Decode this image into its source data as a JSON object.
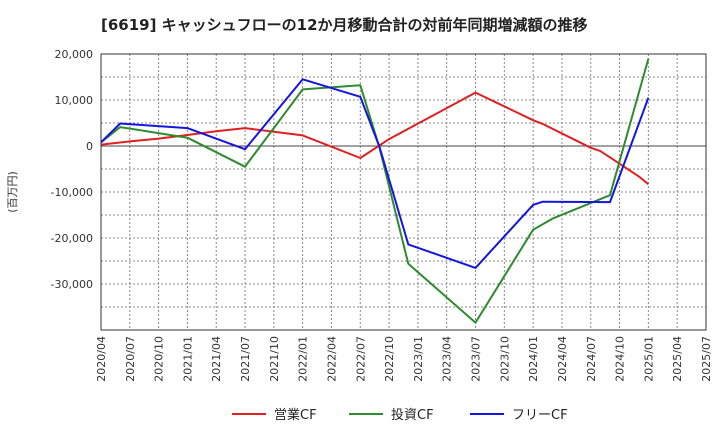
{
  "chart_data": {
    "type": "line",
    "title": "[6619]  キャッシュフローの12か月移動合計の対前年同期増減額の推移",
    "ylabel": "(百万円)",
    "xlabel": "",
    "ylim": [
      -40000,
      20000
    ],
    "yticks": [
      20000,
      10000,
      0,
      -10000,
      -20000,
      -30000
    ],
    "ytick_labels": [
      "20,000",
      "10,000",
      "0",
      "-10,000",
      "-20,000",
      "-30,000"
    ],
    "xticks": [
      "2020/04",
      "2020/07",
      "2020/10",
      "2021/01",
      "2021/04",
      "2021/07",
      "2021/10",
      "2022/01",
      "2022/04",
      "2022/07",
      "2022/10",
      "2023/01",
      "2023/04",
      "2023/07",
      "2023/10",
      "2024/01",
      "2024/04",
      "2024/07",
      "2024/10",
      "2025/01",
      "2025/04",
      "2025/07"
    ],
    "grid": true,
    "legend_position": "bottom",
    "series": [
      {
        "name": "営業CF",
        "color": "#e02020",
        "points": [
          [
            "2020/04",
            300
          ],
          [
            "2020/07",
            1000
          ],
          [
            "2020/10",
            1600
          ],
          [
            "2021/01",
            2400
          ],
          [
            "2021/04",
            3200
          ],
          [
            "2021/07",
            3900
          ],
          [
            "2021/10",
            3100
          ],
          [
            "2022/01",
            2300
          ],
          [
            "2022/07",
            -2600
          ],
          [
            "2022/10",
            1500
          ],
          [
            "2023/07",
            11600
          ],
          [
            "2024/01",
            5600
          ],
          [
            "2024/02",
            4800
          ],
          [
            "2024/07",
            -400
          ],
          [
            "2024/08",
            -1100
          ],
          [
            "2024/12",
            -6600
          ],
          [
            "2025/01",
            -8300
          ]
        ]
      },
      {
        "name": "投資CF",
        "color": "#2e8b2e",
        "points": [
          [
            "2020/04",
            800
          ],
          [
            "2020/06",
            4100
          ],
          [
            "2021/01",
            1800
          ],
          [
            "2021/07",
            -4500
          ],
          [
            "2022/01",
            12300
          ],
          [
            "2022/07",
            13200
          ],
          [
            "2022/09",
            -400
          ],
          [
            "2022/12",
            -25600
          ],
          [
            "2023/07",
            -38400
          ],
          [
            "2024/01",
            -18200
          ],
          [
            "2024/03",
            -15800
          ],
          [
            "2024/09",
            -10700
          ],
          [
            "2025/01",
            19000
          ]
        ]
      },
      {
        "name": "フリーCF",
        "color": "#1515e0",
        "points": [
          [
            "2020/04",
            800
          ],
          [
            "2020/06",
            4900
          ],
          [
            "2021/01",
            3900
          ],
          [
            "2021/07",
            -700
          ],
          [
            "2022/01",
            14500
          ],
          [
            "2022/07",
            10700
          ],
          [
            "2022/09",
            -200
          ],
          [
            "2022/12",
            -21400
          ],
          [
            "2023/07",
            -26500
          ],
          [
            "2024/01",
            -12800
          ],
          [
            "2024/02",
            -12100
          ],
          [
            "2024/09",
            -12200
          ],
          [
            "2025/01",
            10500
          ]
        ]
      }
    ]
  }
}
